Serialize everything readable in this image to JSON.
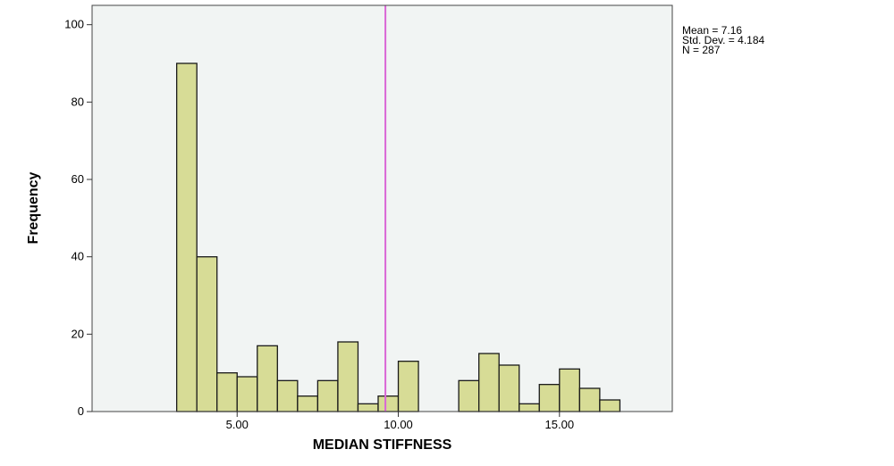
{
  "chart_data": {
    "type": "bar",
    "subtype": "histogram",
    "xlabel": "MEDIAN STIFFNESS",
    "ylabel": "Frequency",
    "xlim": [
      0.5,
      18.5
    ],
    "ylim": [
      0,
      105
    ],
    "x_ticks": [
      "5.00",
      "10.00",
      "15.00"
    ],
    "x_tick_values": [
      5,
      10,
      15
    ],
    "y_ticks": [
      "0",
      "20",
      "40",
      "60",
      "80",
      "100"
    ],
    "y_tick_values": [
      0,
      20,
      40,
      60,
      80,
      100
    ],
    "bin_width": 0.625,
    "bins": [
      {
        "start": 3.125,
        "value": 90
      },
      {
        "start": 3.75,
        "value": 40
      },
      {
        "start": 4.375,
        "value": 10
      },
      {
        "start": 5.0,
        "value": 9
      },
      {
        "start": 5.625,
        "value": 17
      },
      {
        "start": 6.25,
        "value": 8
      },
      {
        "start": 6.875,
        "value": 4
      },
      {
        "start": 7.5,
        "value": 8
      },
      {
        "start": 8.125,
        "value": 18
      },
      {
        "start": 8.75,
        "value": 2
      },
      {
        "start": 9.375,
        "value": 4
      },
      {
        "start": 10.0,
        "value": 13
      },
      {
        "start": 11.875,
        "value": 8
      },
      {
        "start": 12.5,
        "value": 15
      },
      {
        "start": 13.125,
        "value": 12
      },
      {
        "start": 13.75,
        "value": 2
      },
      {
        "start": 14.375,
        "value": 7
      },
      {
        "start": 15.0,
        "value": 11
      },
      {
        "start": 15.625,
        "value": 6
      },
      {
        "start": 16.25,
        "value": 3
      }
    ],
    "reference_line": {
      "x": 9.6,
      "color": "#d966d6"
    },
    "stats": [
      "Mean = 7.16",
      "Std. Dev. = 4.184",
      "N = 287"
    ],
    "bar_color": "#d7dc96",
    "background_color": "#f1f4f3",
    "grid": false,
    "legend": "top-right"
  }
}
